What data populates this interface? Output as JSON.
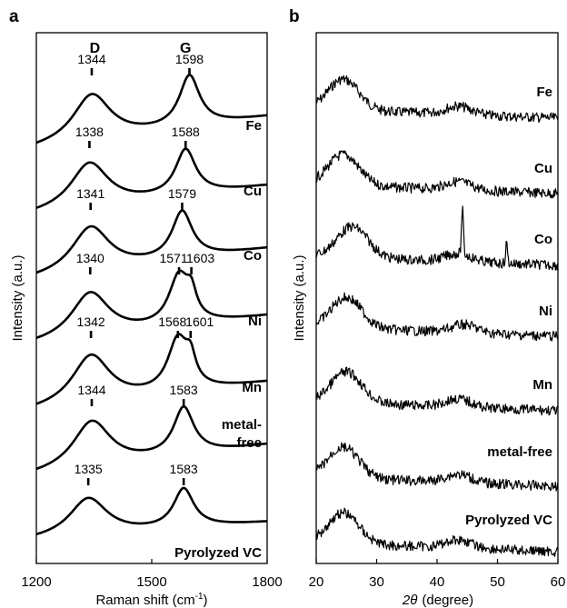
{
  "chart_data": [
    {
      "type": "line",
      "panel": "a",
      "xlabel": "Raman shift (cm",
      "xlabel_sup": "-1",
      "xlabel_end": ")",
      "ylabel": "Intensity (a.u.)",
      "xlim": [
        1200,
        1800
      ],
      "xticks": [
        "1200",
        "1500",
        "1800"
      ],
      "xtick_values": [
        1200,
        1500,
        1800
      ],
      "band_labels": [
        {
          "text": "D",
          "x": 1352
        },
        {
          "text": "G",
          "x": 1588
        }
      ],
      "series": [
        {
          "name": "Fe",
          "d_peak": 1344,
          "g_peak": 1598,
          "peak_labels": [
            {
              "text": "1344",
              "x": 1344
            },
            {
              "text": "1598",
              "x": 1598
            }
          ]
        },
        {
          "name": "Cu",
          "d_peak": 1338,
          "g_peak": 1588,
          "peak_labels": [
            {
              "text": "1338",
              "x": 1338
            },
            {
              "text": "1588",
              "x": 1588
            }
          ]
        },
        {
          "name": "Co",
          "d_peak": 1341,
          "g_peak": 1579,
          "peak_labels": [
            {
              "text": "1341",
              "x": 1341
            },
            {
              "text": "1579",
              "x": 1579
            }
          ]
        },
        {
          "name": "Ni",
          "d_peak": 1340,
          "g_peak": 1571,
          "g_shoulder": 1603,
          "peak_labels": [
            {
              "text": "1340",
              "x": 1340
            },
            {
              "text": "1571",
              "x": 1571
            },
            {
              "text": "1603",
              "x": 1603
            }
          ]
        },
        {
          "name": "Mn",
          "d_peak": 1342,
          "g_peak": 1568,
          "g_shoulder": 1601,
          "peak_labels": [
            {
              "text": "1342",
              "x": 1342
            },
            {
              "text": "1568",
              "x": 1568
            },
            {
              "text": "1601",
              "x": 1601
            }
          ]
        },
        {
          "name": "metal-",
          "name_line2": "free",
          "d_peak": 1344,
          "g_peak": 1583,
          "peak_labels": [
            {
              "text": "1344",
              "x": 1344
            },
            {
              "text": "1583",
              "x": 1583
            }
          ]
        },
        {
          "name": "Pyrolyzed VC",
          "d_peak": 1335,
          "g_peak": 1583,
          "peak_labels": [
            {
              "text": "1335",
              "x": 1335
            },
            {
              "text": "1583",
              "x": 1583
            }
          ]
        }
      ]
    },
    {
      "type": "line",
      "panel": "b",
      "xlabel_symbol": "2θ",
      "xlabel": "(degree)",
      "ylabel": "Intensity (a.u.)",
      "xlim": [
        20,
        60
      ],
      "xticks": [
        "20",
        "30",
        "40",
        "50",
        "60"
      ],
      "xtick_values": [
        20,
        30,
        40,
        50,
        60
      ],
      "series": [
        {
          "name": "Fe",
          "broad_peaks_2theta": [
            24.5,
            43.5
          ]
        },
        {
          "name": "Cu",
          "broad_peaks_2theta": [
            24.5,
            43.5
          ]
        },
        {
          "name": "Co",
          "broad_peaks_2theta": [
            26.0,
            43.5
          ],
          "sharp_peaks_2theta": [
            44.2,
            51.5
          ]
        },
        {
          "name": "Ni",
          "broad_peaks_2theta": [
            25.0,
            44.5
          ]
        },
        {
          "name": "Mn",
          "broad_peaks_2theta": [
            25.0,
            43.5
          ]
        },
        {
          "name": "metal-free",
          "broad_peaks_2theta": [
            24.5,
            43.5
          ]
        },
        {
          "name": "Pyrolyzed VC",
          "broad_peaks_2theta": [
            24.5,
            43.5
          ]
        }
      ]
    }
  ]
}
